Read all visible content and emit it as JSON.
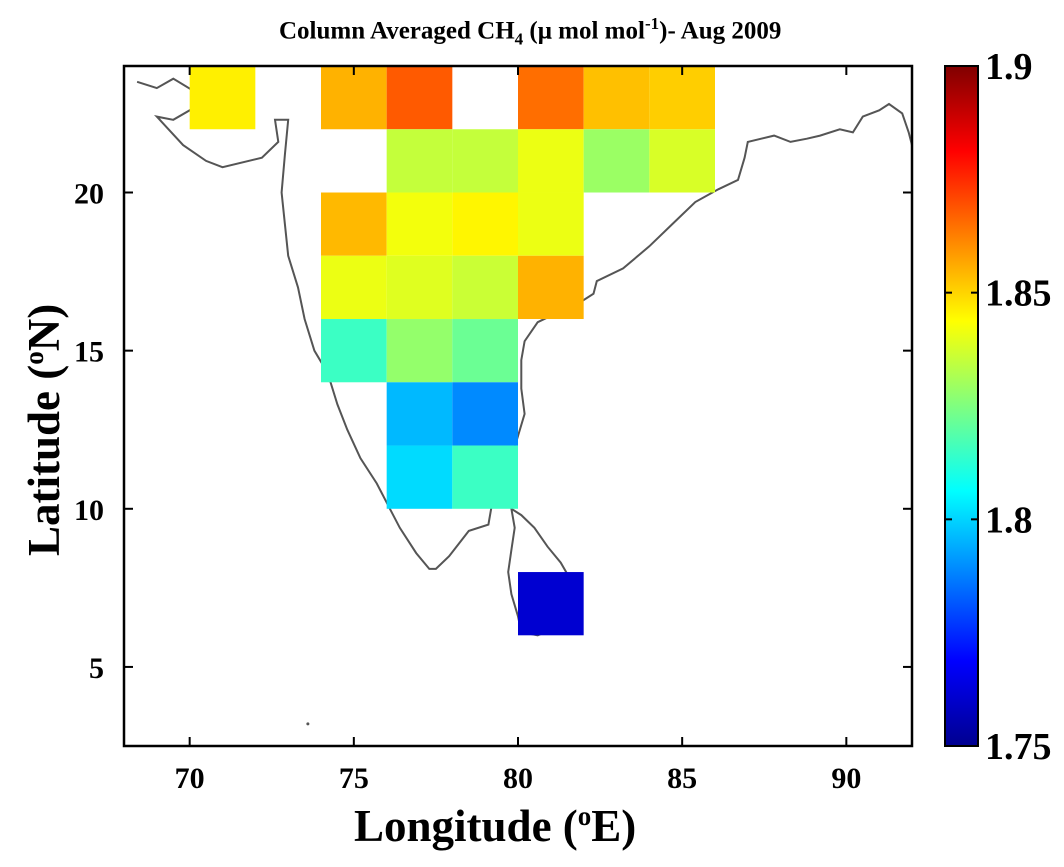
{
  "title": {
    "main": "Column Averaged CH",
    "subscript": "4",
    "unit_open": " (μ mol mol",
    "superscript": "-1",
    "suffix": ")- Aug 2009"
  },
  "xlabel": {
    "text": "Longitude (",
    "sup": "o",
    "unit": "E)"
  },
  "ylabel": {
    "text": "Latitude (",
    "sup": "o",
    "unit": "N)"
  },
  "chart_data": {
    "type": "heatmap",
    "xlim": [
      68,
      92
    ],
    "ylim": [
      2.5,
      24
    ],
    "x_ticks": [
      70,
      75,
      80,
      85,
      90
    ],
    "y_ticks": [
      5,
      10,
      15,
      20
    ],
    "grid": false,
    "cell_size_deg": 2,
    "cells": [
      {
        "lon": 70,
        "lat": 22,
        "value": 1.846
      },
      {
        "lon": 74,
        "lat": 22,
        "value": 1.855
      },
      {
        "lon": 76,
        "lat": 22,
        "value": 1.868
      },
      {
        "lon": 80,
        "lat": 22,
        "value": 1.865
      },
      {
        "lon": 82,
        "lat": 22,
        "value": 1.853
      },
      {
        "lon": 84,
        "lat": 22,
        "value": 1.851
      },
      {
        "lon": 76,
        "lat": 20,
        "value": 1.835
      },
      {
        "lon": 78,
        "lat": 20,
        "value": 1.835
      },
      {
        "lon": 80,
        "lat": 20,
        "value": 1.841
      },
      {
        "lon": 82,
        "lat": 20,
        "value": 1.829
      },
      {
        "lon": 84,
        "lat": 20,
        "value": 1.838
      },
      {
        "lon": 74,
        "lat": 18,
        "value": 1.854
      },
      {
        "lon": 76,
        "lat": 18,
        "value": 1.842
      },
      {
        "lon": 78,
        "lat": 18,
        "value": 1.845
      },
      {
        "lon": 80,
        "lat": 18,
        "value": 1.841
      },
      {
        "lon": 74,
        "lat": 16,
        "value": 1.841
      },
      {
        "lon": 76,
        "lat": 16,
        "value": 1.839
      },
      {
        "lon": 78,
        "lat": 16,
        "value": 1.836
      },
      {
        "lon": 80,
        "lat": 16,
        "value": 1.855
      },
      {
        "lon": 74,
        "lat": 14,
        "value": 1.815
      },
      {
        "lon": 76,
        "lat": 14,
        "value": 1.828
      },
      {
        "lon": 78,
        "lat": 14,
        "value": 1.822
      },
      {
        "lon": 76,
        "lat": 12,
        "value": 1.796
      },
      {
        "lon": 78,
        "lat": 12,
        "value": 1.789
      },
      {
        "lon": 76,
        "lat": 10,
        "value": 1.801
      },
      {
        "lon": 78,
        "lat": 10,
        "value": 1.815
      },
      {
        "lon": 80,
        "lat": 6,
        "value": 1.762
      }
    ],
    "colorbar": {
      "colormap": "jet",
      "min": 1.75,
      "max": 1.9,
      "ticks": [
        1.75,
        1.8,
        1.85,
        1.9
      ],
      "tick_labels": [
        "1.75",
        "1.8",
        "1.85",
        "1.9"
      ]
    },
    "coastline_color": "#555555"
  }
}
